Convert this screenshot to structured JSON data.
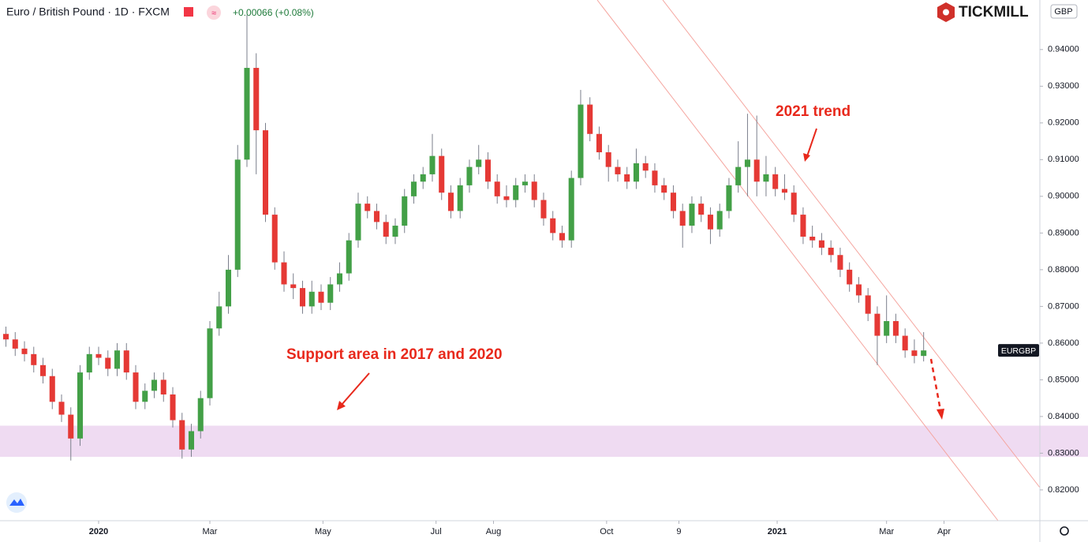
{
  "chart_data": {
    "type": "candlestick",
    "title": "Euro / British Pound · 1D · FXCM",
    "change": "+0.00066 (+0.08%)",
    "brand": "TICKMILL",
    "currency": "GBP",
    "ticker": "EURGBP",
    "annotations": [
      "2021 trend",
      "Support area in 2017 and 2020"
    ],
    "support_zone": [
      0.829,
      0.8375
    ],
    "up_color": "#43a047",
    "down_color": "#e53935",
    "wick_color": "#7b7f8c",
    "xlim": [
      -53.2,
      507.7
    ],
    "ylim": [
      0.8116,
      0.9535
    ],
    "xticks": [
      {
        "value": 0,
        "label": "2020"
      },
      {
        "value": 60,
        "label": "Mar"
      },
      {
        "value": 121,
        "label": "May"
      },
      {
        "value": 182,
        "label": "Jul"
      },
      {
        "value": 213,
        "label": "Aug"
      },
      {
        "value": 274,
        "label": "Oct"
      },
      {
        "value": 313,
        "label": "9"
      },
      {
        "value": 366,
        "label": "2021"
      },
      {
        "value": 425,
        "label": "Mar"
      },
      {
        "value": 456,
        "label": "Apr"
      }
    ],
    "yticks": [
      {
        "value": 0.82,
        "label": "0.82000"
      },
      {
        "value": 0.83,
        "label": "0.83000"
      },
      {
        "value": 0.84,
        "label": "0.84000"
      },
      {
        "value": 0.85,
        "label": "0.85000"
      },
      {
        "value": 0.86,
        "label": "0.86000"
      },
      {
        "value": 0.87,
        "label": "0.87000"
      },
      {
        "value": 0.88,
        "label": "0.88000"
      },
      {
        "value": 0.89,
        "label": "0.89000"
      },
      {
        "value": 0.9,
        "label": "0.90000"
      },
      {
        "value": 0.91,
        "label": "0.91000"
      },
      {
        "value": 0.92,
        "label": "0.92000"
      },
      {
        "value": 0.93,
        "label": "0.93000"
      },
      {
        "value": 0.94,
        "label": "0.94000"
      }
    ],
    "x": [
      -50,
      -45,
      -40,
      -35,
      -30,
      -25,
      -20,
      -15,
      -10,
      -5,
      0,
      5,
      10,
      15,
      20,
      25,
      30,
      35,
      40,
      45,
      50,
      55,
      60,
      65,
      70,
      75,
      80,
      85,
      90,
      95,
      100,
      105,
      110,
      115,
      120,
      125,
      130,
      135,
      140,
      145,
      150,
      155,
      160,
      165,
      170,
      175,
      180,
      185,
      190,
      195,
      200,
      205,
      210,
      215,
      220,
      225,
      230,
      235,
      240,
      245,
      250,
      255,
      260,
      265,
      270,
      275,
      280,
      285,
      290,
      295,
      300,
      305,
      310,
      315,
      320,
      325,
      330,
      335,
      340,
      345,
      350,
      355,
      360,
      365,
      370,
      375,
      380,
      385,
      390,
      395,
      400,
      405,
      410,
      415,
      420,
      425,
      430,
      435,
      440,
      445
    ],
    "open": [
      0.8625,
      0.861,
      0.8585,
      0.857,
      0.854,
      0.851,
      0.844,
      0.8405,
      0.834,
      0.852,
      0.857,
      0.856,
      0.853,
      0.858,
      0.852,
      0.844,
      0.847,
      0.85,
      0.846,
      0.839,
      0.831,
      0.836,
      0.845,
      0.864,
      0.87,
      0.88,
      0.91,
      0.935,
      0.918,
      0.895,
      0.882,
      0.876,
      0.875,
      0.87,
      0.874,
      0.871,
      0.876,
      0.879,
      0.888,
      0.898,
      0.896,
      0.893,
      0.889,
      0.892,
      0.9,
      0.904,
      0.906,
      0.911,
      0.901,
      0.896,
      0.903,
      0.908,
      0.91,
      0.904,
      0.9,
      0.899,
      0.903,
      0.904,
      0.899,
      0.894,
      0.89,
      0.888,
      0.905,
      0.925,
      0.917,
      0.912,
      0.908,
      0.906,
      0.904,
      0.909,
      0.907,
      0.903,
      0.901,
      0.896,
      0.892,
      0.898,
      0.895,
      0.891,
      0.896,
      0.903,
      0.908,
      0.91,
      0.904,
      0.906,
      0.902,
      0.901,
      0.895,
      0.889,
      0.888,
      0.886,
      0.884,
      0.88,
      0.876,
      0.873,
      0.868,
      0.862,
      0.866,
      0.862,
      0.858,
      0.8565
    ],
    "high": [
      0.8645,
      0.863,
      0.8605,
      0.859,
      0.856,
      0.853,
      0.846,
      0.8425,
      0.854,
      0.859,
      0.859,
      0.858,
      0.86,
      0.86,
      0.854,
      0.849,
      0.852,
      0.852,
      0.848,
      0.841,
      0.838,
      0.847,
      0.866,
      0.874,
      0.884,
      0.914,
      0.9495,
      0.939,
      0.92,
      0.897,
      0.885,
      0.879,
      0.877,
      0.877,
      0.876,
      0.878,
      0.882,
      0.89,
      0.901,
      0.9,
      0.898,
      0.895,
      0.894,
      0.902,
      0.906,
      0.908,
      0.917,
      0.913,
      0.903,
      0.905,
      0.91,
      0.914,
      0.912,
      0.906,
      0.903,
      0.905,
      0.906,
      0.906,
      0.901,
      0.896,
      0.892,
      0.907,
      0.929,
      0.927,
      0.919,
      0.914,
      0.91,
      0.908,
      0.913,
      0.911,
      0.909,
      0.905,
      0.903,
      0.898,
      0.9,
      0.9,
      0.897,
      0.898,
      0.905,
      0.915,
      0.9225,
      0.922,
      0.911,
      0.908,
      0.906,
      0.903,
      0.897,
      0.892,
      0.89,
      0.888,
      0.886,
      0.882,
      0.878,
      0.875,
      0.87,
      0.873,
      0.868,
      0.864,
      0.861,
      0.863
    ],
    "low": [
      0.859,
      0.8565,
      0.855,
      0.852,
      0.849,
      0.842,
      0.8385,
      0.828,
      0.832,
      0.85,
      0.854,
      0.851,
      0.851,
      0.85,
      0.842,
      0.842,
      0.845,
      0.844,
      0.837,
      0.8285,
      0.829,
      0.834,
      0.843,
      0.862,
      0.868,
      0.878,
      0.908,
      0.906,
      0.893,
      0.88,
      0.874,
      0.872,
      0.868,
      0.868,
      0.869,
      0.869,
      0.874,
      0.877,
      0.886,
      0.894,
      0.891,
      0.887,
      0.887,
      0.89,
      0.898,
      0.902,
      0.904,
      0.899,
      0.894,
      0.894,
      0.901,
      0.906,
      0.902,
      0.898,
      0.897,
      0.897,
      0.901,
      0.897,
      0.892,
      0.888,
      0.886,
      0.886,
      0.903,
      0.915,
      0.91,
      0.904,
      0.904,
      0.902,
      0.902,
      0.905,
      0.901,
      0.899,
      0.894,
      0.886,
      0.89,
      0.893,
      0.887,
      0.889,
      0.894,
      0.901,
      0.9,
      0.9,
      0.9,
      0.9,
      0.899,
      0.893,
      0.887,
      0.886,
      0.884,
      0.882,
      0.878,
      0.874,
      0.871,
      0.866,
      0.854,
      0.86,
      0.86,
      0.856,
      0.8545,
      0.855
    ],
    "close": [
      0.861,
      0.8585,
      0.857,
      0.854,
      0.851,
      0.844,
      0.8405,
      0.834,
      0.852,
      0.857,
      0.856,
      0.853,
      0.858,
      0.852,
      0.844,
      0.847,
      0.85,
      0.846,
      0.839,
      0.831,
      0.836,
      0.845,
      0.864,
      0.87,
      0.88,
      0.91,
      0.935,
      0.918,
      0.895,
      0.882,
      0.876,
      0.875,
      0.87,
      0.874,
      0.871,
      0.876,
      0.879,
      0.888,
      0.898,
      0.896,
      0.893,
      0.889,
      0.892,
      0.9,
      0.904,
      0.906,
      0.911,
      0.901,
      0.896,
      0.903,
      0.908,
      0.91,
      0.904,
      0.9,
      0.899,
      0.903,
      0.904,
      0.899,
      0.894,
      0.89,
      0.888,
      0.905,
      0.925,
      0.917,
      0.912,
      0.908,
      0.906,
      0.904,
      0.909,
      0.907,
      0.903,
      0.901,
      0.896,
      0.892,
      0.898,
      0.895,
      0.891,
      0.896,
      0.903,
      0.908,
      0.91,
      0.904,
      0.906,
      0.902,
      0.901,
      0.895,
      0.889,
      0.888,
      0.886,
      0.884,
      0.88,
      0.876,
      0.873,
      0.868,
      0.862,
      0.866,
      0.862,
      0.858,
      0.8565,
      0.858
    ]
  }
}
